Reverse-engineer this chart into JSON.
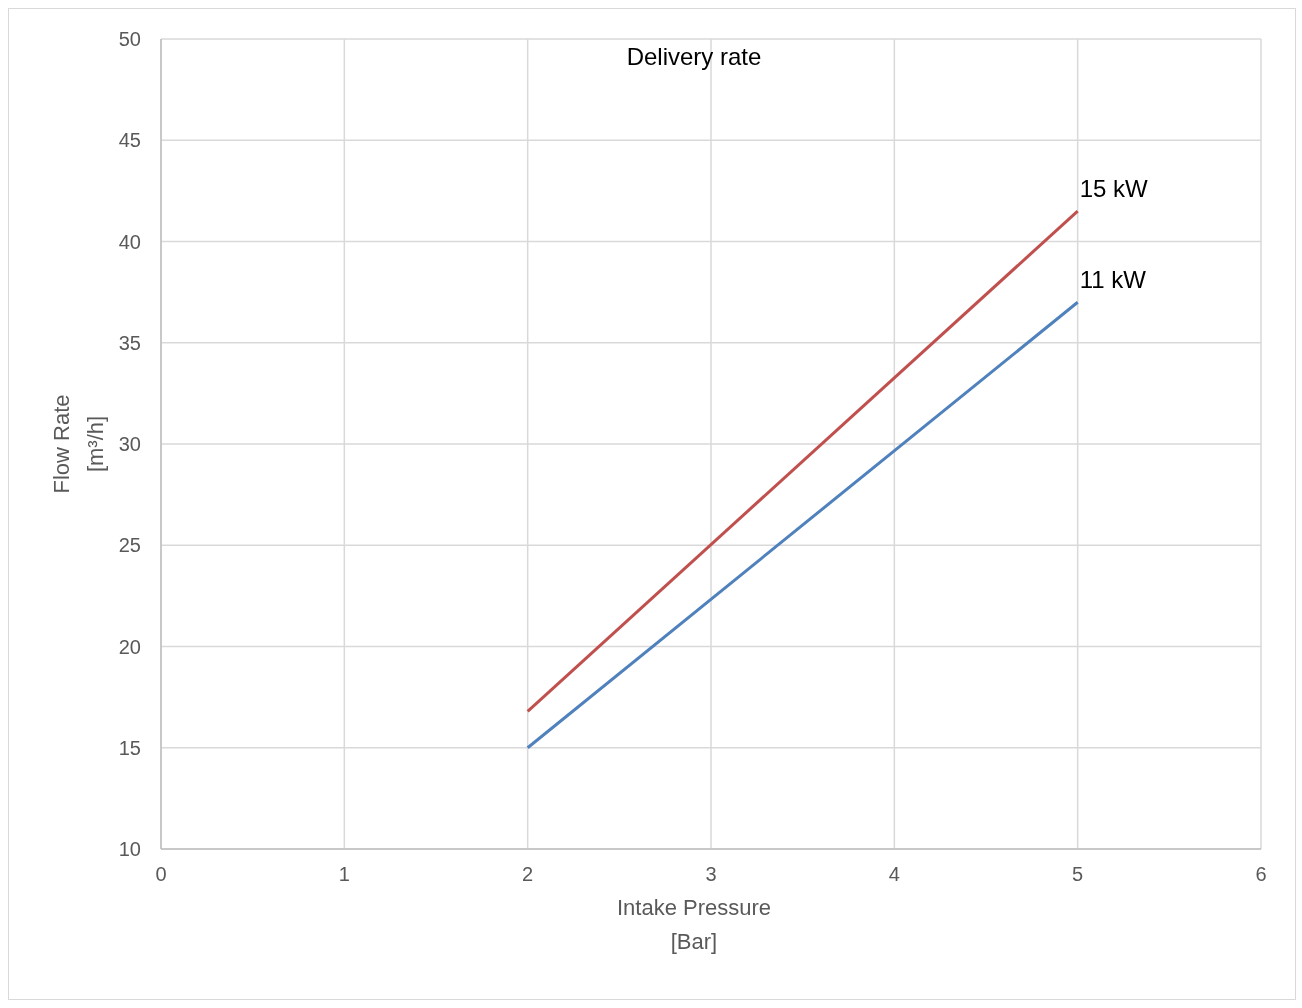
{
  "chart_data": {
    "type": "line",
    "title": "Delivery rate",
    "xlabel": "Intake Pressure\n[Bar]",
    "ylabel": "Flow Rate\n[m³/h]",
    "x": [
      2,
      5
    ],
    "series": [
      {
        "name": "15 kW",
        "color": "#c0504d",
        "values": [
          16.8,
          41.5
        ]
      },
      {
        "name": "11 kW",
        "color": "#4f81bd",
        "values": [
          15,
          37
        ]
      }
    ],
    "xlim": [
      0,
      6
    ],
    "xticks": [
      0,
      1,
      2,
      3,
      4,
      5,
      6
    ],
    "ylim": [
      10,
      50
    ],
    "yticks": [
      10,
      15,
      20,
      25,
      30,
      35,
      40,
      45,
      50
    ],
    "grid": true,
    "marker": "none",
    "line_style": "solid"
  }
}
